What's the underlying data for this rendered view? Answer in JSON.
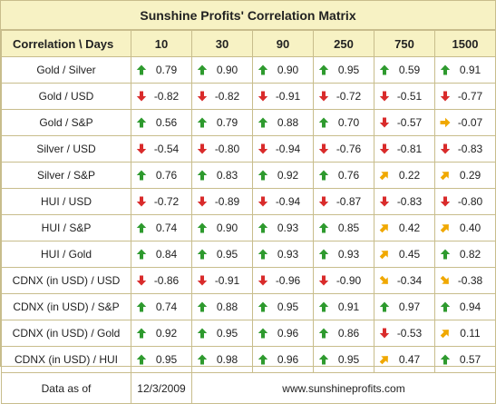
{
  "title": "Sunshine Profits' Correlation Matrix",
  "header": {
    "corner": "Correlation \\ Days",
    "columns": [
      "10",
      "30",
      "90",
      "250",
      "750",
      "1500"
    ]
  },
  "rows": [
    {
      "label": "Gold / Silver",
      "cells": [
        [
          "up",
          "0.79"
        ],
        [
          "up",
          "0.90"
        ],
        [
          "up",
          "0.90"
        ],
        [
          "up",
          "0.95"
        ],
        [
          "up",
          "0.59"
        ],
        [
          "up",
          "0.91"
        ]
      ]
    },
    {
      "label": "Gold / USD",
      "cells": [
        [
          "down",
          "-0.82"
        ],
        [
          "down",
          "-0.82"
        ],
        [
          "down",
          "-0.91"
        ],
        [
          "down",
          "-0.72"
        ],
        [
          "down",
          "-0.51"
        ],
        [
          "down",
          "-0.77"
        ]
      ]
    },
    {
      "label": "Gold / S&P",
      "cells": [
        [
          "up",
          "0.56"
        ],
        [
          "up",
          "0.79"
        ],
        [
          "up",
          "0.88"
        ],
        [
          "up",
          "0.70"
        ],
        [
          "down",
          "-0.57"
        ],
        [
          "right",
          "-0.07"
        ]
      ]
    },
    {
      "label": "Silver / USD",
      "cells": [
        [
          "down",
          "-0.54"
        ],
        [
          "down",
          "-0.80"
        ],
        [
          "down",
          "-0.94"
        ],
        [
          "down",
          "-0.76"
        ],
        [
          "down",
          "-0.81"
        ],
        [
          "down",
          "-0.83"
        ]
      ]
    },
    {
      "label": "Silver / S&P",
      "cells": [
        [
          "up",
          "0.76"
        ],
        [
          "up",
          "0.83"
        ],
        [
          "up",
          "0.92"
        ],
        [
          "up",
          "0.76"
        ],
        [
          "upright",
          "0.22"
        ],
        [
          "upright",
          "0.29"
        ]
      ]
    },
    {
      "label": "HUI / USD",
      "cells": [
        [
          "down",
          "-0.72"
        ],
        [
          "down",
          "-0.89"
        ],
        [
          "down",
          "-0.94"
        ],
        [
          "down",
          "-0.87"
        ],
        [
          "down",
          "-0.83"
        ],
        [
          "down",
          "-0.80"
        ]
      ]
    },
    {
      "label": "HUI / S&P",
      "cells": [
        [
          "up",
          "0.74"
        ],
        [
          "up",
          "0.90"
        ],
        [
          "up",
          "0.93"
        ],
        [
          "up",
          "0.85"
        ],
        [
          "upright",
          "0.42"
        ],
        [
          "upright",
          "0.40"
        ]
      ]
    },
    {
      "label": "HUI / Gold",
      "cells": [
        [
          "up",
          "0.84"
        ],
        [
          "up",
          "0.95"
        ],
        [
          "up",
          "0.93"
        ],
        [
          "up",
          "0.93"
        ],
        [
          "upright",
          "0.45"
        ],
        [
          "up",
          "0.82"
        ]
      ]
    },
    {
      "label": "CDNX (in USD) / USD",
      "cells": [
        [
          "down",
          "-0.86"
        ],
        [
          "down",
          "-0.91"
        ],
        [
          "down",
          "-0.96"
        ],
        [
          "down",
          "-0.90"
        ],
        [
          "downright",
          "-0.34"
        ],
        [
          "downright",
          "-0.38"
        ]
      ]
    },
    {
      "label": "CDNX (in USD) / S&P",
      "cells": [
        [
          "up",
          "0.74"
        ],
        [
          "up",
          "0.88"
        ],
        [
          "up",
          "0.95"
        ],
        [
          "up",
          "0.91"
        ],
        [
          "up",
          "0.97"
        ],
        [
          "up",
          "0.94"
        ]
      ]
    },
    {
      "label": "CDNX (in USD) / Gold",
      "cells": [
        [
          "up",
          "0.92"
        ],
        [
          "up",
          "0.95"
        ],
        [
          "up",
          "0.96"
        ],
        [
          "up",
          "0.86"
        ],
        [
          "down",
          "-0.53"
        ],
        [
          "upright",
          "0.11"
        ]
      ]
    },
    {
      "label": "CDNX (in USD) / HUI",
      "cells": [
        [
          "up",
          "0.95"
        ],
        [
          "up",
          "0.98"
        ],
        [
          "up",
          "0.96"
        ],
        [
          "up",
          "0.95"
        ],
        [
          "upright",
          "0.47"
        ],
        [
          "up",
          "0.57"
        ]
      ]
    }
  ],
  "footer": {
    "label": "Data as of",
    "date": "12/3/2009",
    "site": "www.sunshineprofits.com"
  },
  "colors": {
    "up": "#2e9a2e",
    "down": "#d92b2b",
    "diag": "#f0a800",
    "header_bg": "#f7f2c4",
    "border": "#c8bd8c"
  }
}
